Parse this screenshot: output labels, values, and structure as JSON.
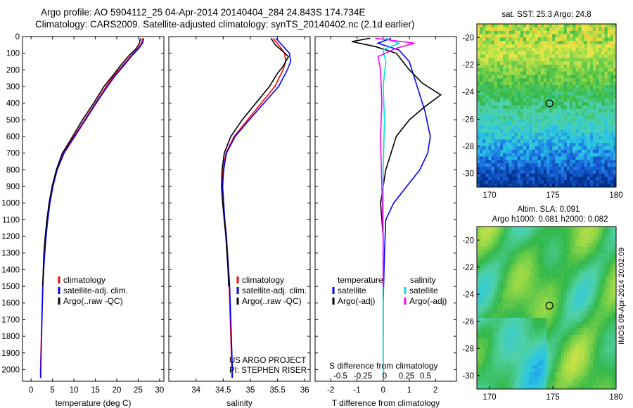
{
  "title_line1": "Argo profile: AO 5904112_25 04-Apr-2014 20140404_284 24.843S 174.734E",
  "title_line2": "Climatology: CARS2009. Satellite-adjusted climatology: synTS_20140402.nc (2.1d earlier)",
  "side_label": "IMOS 09-Apr-2014 20:02:09",
  "colors": {
    "climatology": "#ff0000",
    "satellite": "#0000ff",
    "argo": "#000000",
    "t_diff": "#000000",
    "t_sat": "#0000ff",
    "s_sat": "#00dddd",
    "s_argo": "#ff00ff"
  },
  "depth_axis": {
    "ylim": [
      0,
      2070
    ],
    "ticks": [
      "0",
      "100",
      "200",
      "300",
      "400",
      "500",
      "600",
      "700",
      "800",
      "900",
      "1000",
      "1100",
      "1200",
      "1300",
      "1400",
      "1500",
      "1600",
      "1700",
      "1800",
      "1900",
      "2000"
    ]
  },
  "chart_data": [
    {
      "id": "temperature",
      "type": "line",
      "xlabel": "temperature (deg C)",
      "xlim": [
        -2,
        31
      ],
      "xticks": [
        0,
        5,
        10,
        15,
        20,
        25,
        30
      ],
      "legend": [
        "climatology",
        "satellite-adj. clim.",
        "Argo(..raw -QC)"
      ],
      "series": [
        {
          "name": "climatology",
          "points": [
            [
              26.0,
              10
            ],
            [
              25.8,
              40
            ],
            [
              25.0,
              70
            ],
            [
              23.5,
              110
            ],
            [
              21.5,
              170
            ],
            [
              19.5,
              230
            ],
            [
              17.5,
              300
            ],
            [
              15.0,
              400
            ],
            [
              12.5,
              500
            ],
            [
              10.0,
              600
            ],
            [
              7.5,
              700
            ],
            [
              6.0,
              800
            ],
            [
              5.0,
              900
            ],
            [
              4.3,
              1000
            ],
            [
              3.8,
              1100
            ],
            [
              3.4,
              1200
            ],
            [
              3.1,
              1300
            ],
            [
              2.9,
              1400
            ],
            [
              2.7,
              1500
            ],
            [
              2.6,
              1600
            ],
            [
              2.5,
              1700
            ],
            [
              2.4,
              1800
            ],
            [
              2.3,
              1900
            ],
            [
              2.2,
              2000
            ],
            [
              2.2,
              2050
            ]
          ]
        },
        {
          "name": "satellite-adj. clim.",
          "points": [
            [
              26.3,
              10
            ],
            [
              26.0,
              40
            ],
            [
              25.2,
              70
            ],
            [
              23.7,
              110
            ],
            [
              21.8,
              170
            ],
            [
              19.8,
              230
            ],
            [
              17.8,
              300
            ],
            [
              15.2,
              400
            ],
            [
              12.7,
              500
            ],
            [
              10.2,
              600
            ],
            [
              7.7,
              700
            ],
            [
              6.1,
              800
            ],
            [
              5.1,
              900
            ],
            [
              4.4,
              1000
            ],
            [
              3.9,
              1100
            ],
            [
              3.5,
              1200
            ],
            [
              3.2,
              1300
            ],
            [
              2.95,
              1400
            ],
            [
              2.75,
              1500
            ],
            [
              2.65,
              1600
            ],
            [
              2.55,
              1700
            ],
            [
              2.45,
              1800
            ],
            [
              2.35,
              1900
            ],
            [
              2.25,
              2000
            ],
            [
              2.25,
              2050
            ]
          ]
        },
        {
          "name": "Argo(..raw -QC)",
          "points": [
            [
              25.5,
              10
            ],
            [
              25.3,
              40
            ],
            [
              24.6,
              70
            ],
            [
              23.0,
              110
            ],
            [
              21.0,
              170
            ],
            [
              19.2,
              230
            ],
            [
              17.0,
              300
            ],
            [
              14.6,
              400
            ],
            [
              12.0,
              500
            ],
            [
              9.7,
              600
            ],
            [
              7.3,
              700
            ],
            [
              5.9,
              800
            ],
            [
              4.9,
              900
            ],
            [
              4.2,
              1000
            ],
            [
              3.7,
              1100
            ],
            [
              3.3,
              1200
            ],
            [
              3.0,
              1300
            ],
            [
              2.85,
              1400
            ],
            [
              2.7,
              1500
            ]
          ]
        }
      ]
    },
    {
      "id": "salinity",
      "type": "line",
      "xlabel": "salinity",
      "xlim": [
        33.5,
        36.1
      ],
      "xticks": [
        34,
        34.5,
        35,
        35.5,
        36
      ],
      "legend": [
        "climatology",
        "satellite-adj. clim.",
        "Argo(..raw -QC)"
      ],
      "series": [
        {
          "name": "climatology",
          "points": [
            [
              35.42,
              10
            ],
            [
              35.52,
              50
            ],
            [
              35.63,
              100
            ],
            [
              35.65,
              150
            ],
            [
              35.6,
              200
            ],
            [
              35.45,
              300
            ],
            [
              35.2,
              400
            ],
            [
              34.95,
              500
            ],
            [
              34.7,
              600
            ],
            [
              34.55,
              700
            ],
            [
              34.5,
              800
            ],
            [
              34.48,
              900
            ],
            [
              34.5,
              1000
            ],
            [
              34.52,
              1100
            ],
            [
              34.55,
              1200
            ],
            [
              34.57,
              1300
            ],
            [
              34.59,
              1400
            ],
            [
              34.61,
              1500
            ],
            [
              34.62,
              1600
            ],
            [
              34.63,
              1700
            ],
            [
              34.64,
              1800
            ],
            [
              34.65,
              1900
            ],
            [
              34.66,
              2000
            ],
            [
              34.66,
              2050
            ]
          ]
        },
        {
          "name": "satellite-adj. clim.",
          "points": [
            [
              35.47,
              10
            ],
            [
              35.58,
              50
            ],
            [
              35.72,
              100
            ],
            [
              35.74,
              150
            ],
            [
              35.68,
              200
            ],
            [
              35.52,
              300
            ],
            [
              35.25,
              400
            ],
            [
              34.98,
              500
            ],
            [
              34.72,
              600
            ],
            [
              34.56,
              700
            ],
            [
              34.51,
              800
            ],
            [
              34.49,
              900
            ],
            [
              34.51,
              1000
            ],
            [
              34.53,
              1100
            ],
            [
              34.56,
              1200
            ],
            [
              34.58,
              1300
            ],
            [
              34.6,
              1400
            ],
            [
              34.62,
              1500
            ],
            [
              34.63,
              1600
            ],
            [
              34.64,
              1700
            ],
            [
              34.65,
              1800
            ],
            [
              34.66,
              1900
            ],
            [
              34.67,
              2000
            ],
            [
              34.67,
              2050
            ]
          ]
        },
        {
          "name": "Argo(..raw -QC)",
          "points": [
            [
              35.38,
              10
            ],
            [
              35.46,
              50
            ],
            [
              35.6,
              90
            ],
            [
              35.7,
              120
            ],
            [
              35.6,
              180
            ],
            [
              35.5,
              220
            ],
            [
              35.35,
              300
            ],
            [
              35.1,
              400
            ],
            [
              34.85,
              500
            ],
            [
              34.64,
              600
            ],
            [
              34.52,
              700
            ],
            [
              34.48,
              800
            ],
            [
              34.47,
              900
            ],
            [
              34.49,
              1000
            ],
            [
              34.52,
              1100
            ],
            [
              34.55,
              1200
            ],
            [
              34.57,
              1300
            ],
            [
              34.59,
              1400
            ],
            [
              34.6,
              1500
            ]
          ]
        }
      ],
      "annotations": [
        "US ARGO PROJECT",
        "PI: STEPHEN RISER"
      ]
    },
    {
      "id": "difference",
      "type": "line",
      "xlabel": "T difference from climatology",
      "xlabel_top": "S difference from climatology",
      "xlim": [
        -2.6,
        2.8
      ],
      "xticks": [
        "-2",
        "-1",
        "0",
        "1",
        "2"
      ],
      "xticks_top": [
        "-0.5",
        "-0.25",
        "0",
        "0.25",
        "0.5"
      ],
      "legend_temperature": [
        "temperature",
        "satellite",
        "Argo(-adj)"
      ],
      "legend_salinity": [
        "salinity",
        "satellite",
        "Argo(-adj)"
      ],
      "series": [
        {
          "name": "temperature satellite",
          "points": [
            [
              0.3,
              10
            ],
            [
              -0.2,
              40
            ],
            [
              0.6,
              80
            ],
            [
              1.0,
              150
            ],
            [
              1.2,
              250
            ],
            [
              1.4,
              350
            ],
            [
              1.6,
              450
            ],
            [
              1.8,
              600
            ],
            [
              1.7,
              700
            ],
            [
              1.4,
              800
            ],
            [
              0.9,
              900
            ],
            [
              0.4,
              1000
            ],
            [
              0.1,
              1100
            ],
            [
              0.05,
              1300
            ],
            [
              0,
              1600
            ],
            [
              0,
              2050
            ]
          ]
        },
        {
          "name": "temperature Argo(-adj)",
          "points": [
            [
              -0.5,
              10
            ],
            [
              -1.2,
              30
            ],
            [
              -0.3,
              60
            ],
            [
              0.5,
              100
            ],
            [
              1.0,
              200
            ],
            [
              1.5,
              280
            ],
            [
              2.2,
              350
            ],
            [
              1.6,
              420
            ],
            [
              1.0,
              500
            ],
            [
              0.5,
              600
            ],
            [
              0.3,
              700
            ],
            [
              0.1,
              800
            ],
            [
              0.0,
              900
            ],
            [
              -0.1,
              1000
            ],
            [
              0,
              1200
            ],
            [
              0,
              1800
            ]
          ]
        },
        {
          "name": "salinity satellite",
          "points": [
            [
              0.1,
              10
            ],
            [
              0.6,
              40
            ],
            [
              0.0,
              80
            ],
            [
              0.1,
              150
            ],
            [
              0.0,
              300
            ],
            [
              0.05,
              500
            ],
            [
              0.0,
              800
            ],
            [
              0.0,
              1200
            ],
            [
              0.0,
              1600
            ],
            [
              0.0,
              2050
            ]
          ]
        },
        {
          "name": "salinity Argo(-adj)",
          "points": [
            [
              -0.3,
              10
            ],
            [
              1.2,
              40
            ],
            [
              0.5,
              70
            ],
            [
              -0.2,
              120
            ],
            [
              -0.1,
              200
            ],
            [
              -0.05,
              400
            ],
            [
              -0.1,
              600
            ],
            [
              -0.05,
              900
            ],
            [
              0,
              1200
            ],
            [
              0,
              1500
            ]
          ]
        }
      ]
    },
    {
      "id": "sst_map",
      "type": "heatmap",
      "title": "sat. SST: 25.3 Argo: 24.8",
      "xlim": [
        169,
        180
      ],
      "ylim": [
        -31,
        -19
      ],
      "xticks": [
        170,
        175,
        180
      ],
      "yticks": [
        -20,
        -22,
        -24,
        -26,
        -28,
        -30
      ],
      "marker": [
        174.734,
        -24.843
      ]
    },
    {
      "id": "sla_map",
      "type": "heatmap",
      "title": "Altim. SLA: 0.091",
      "subtitle": "Argo h1000: 0.081 h2000: 0.082",
      "xlim": [
        169,
        180
      ],
      "ylim": [
        -31,
        -19
      ],
      "xticks": [
        170,
        175,
        180
      ],
      "yticks": [
        -20,
        -22,
        -24,
        -26,
        -28,
        -30
      ],
      "marker": [
        174.734,
        -24.843
      ]
    }
  ]
}
